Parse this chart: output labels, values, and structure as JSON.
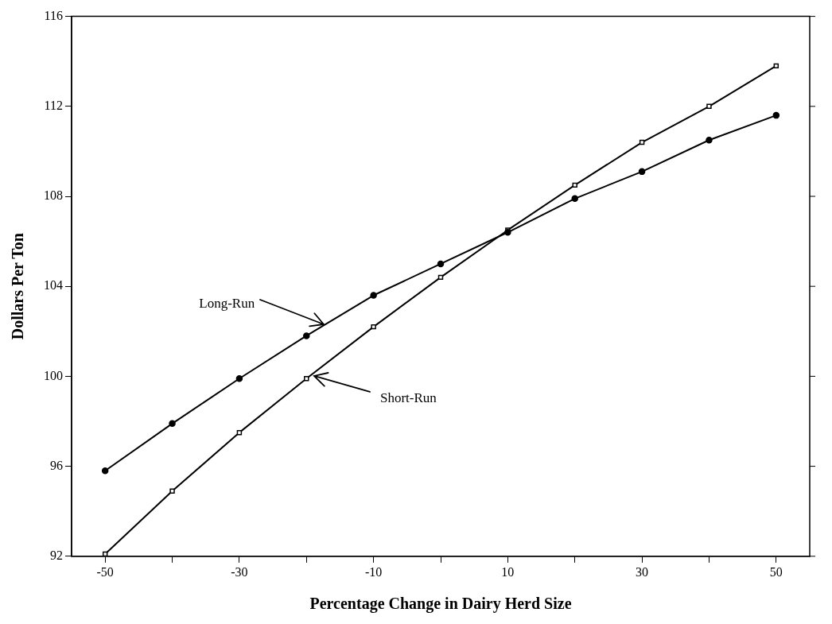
{
  "chart_data": {
    "type": "line",
    "xlabel": "Percentage Change in Dairy Herd Size",
    "ylabel": "Dollars Per Ton",
    "x": [
      -50,
      -40,
      -30,
      -20,
      -10,
      0,
      10,
      20,
      30,
      40,
      50
    ],
    "series": [
      {
        "color": "#000000",
        "marker": "circle",
        "values": [
          95.8,
          97.9,
          99.9,
          101.8,
          103.6,
          105.0,
          106.4,
          107.9,
          109.1,
          110.5,
          111.6
        ]
      },
      {
        "color": "#000000",
        "marker": "square",
        "values": [
          92.1,
          94.9,
          97.5,
          99.9,
          102.2,
          104.4,
          106.5,
          108.5,
          110.4,
          112.0,
          113.8
        ]
      }
    ],
    "xlim": [
      -55,
      55
    ],
    "xticks": [
      -50,
      {
        "value": -40,
        "label": null
      },
      -30,
      {
        "value": -20,
        "label": null
      },
      -10,
      {
        "value": 0,
        "label": null
      },
      10,
      {
        "value": 20,
        "label": null
      },
      30,
      {
        "value": 40,
        "label": null
      },
      50
    ],
    "ylim": [
      92,
      116
    ],
    "yticks": [
      92,
      96,
      100,
      104,
      108,
      112,
      116
    ],
    "annotations": [
      {
        "text": "Long-Run",
        "x": -17.4,
        "y": 102.3
      },
      {
        "text": "Short-Run",
        "x": -18.8,
        "y": 100.0
      }
    ],
    "grid": false,
    "legend": false,
    "line_style": "solid"
  }
}
